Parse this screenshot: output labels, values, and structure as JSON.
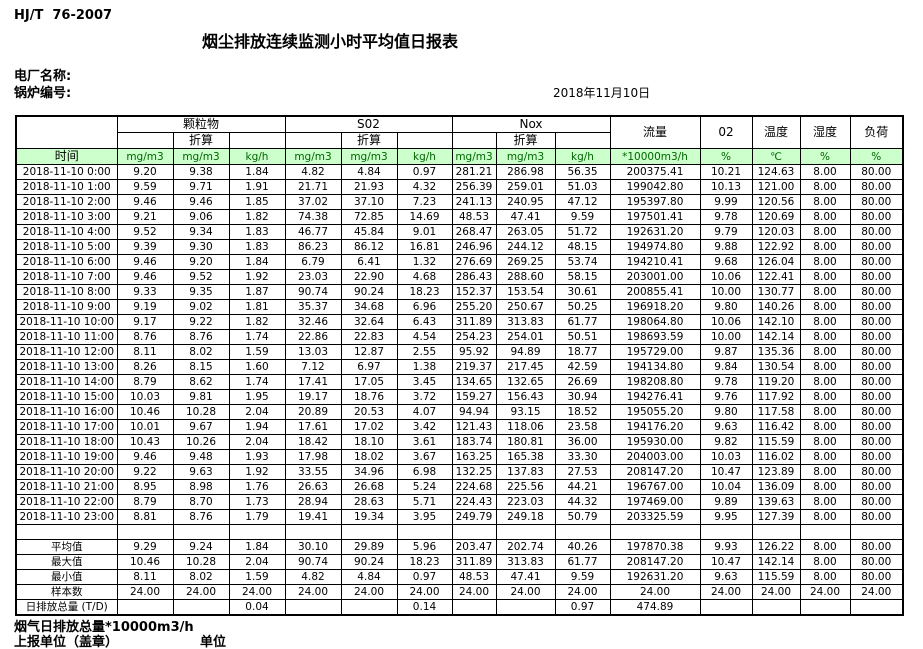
{
  "header": {
    "standard": "HJ/T  76-2007",
    "title": "烟尘排放连续监测小时平均值日报表",
    "plant_label": "电厂名称:",
    "boiler_label": "锅炉编号:",
    "date": "2018年11月10日"
  },
  "table": {
    "columns": {
      "time": "时间",
      "groups": [
        "颗粒物",
        "S02",
        "Nox"
      ],
      "subheader": "折算",
      "flow": "流量",
      "o2": "02",
      "temp": "温度",
      "humidity": "湿度",
      "load": "负荷",
      "units": [
        "mg/m3",
        "mg/m3",
        "kg/h",
        "mg/m3",
        "mg/m3",
        "kg/h",
        "mg/m3",
        "mg/m3",
        "kg/h",
        "*10000m3/h",
        "%",
        "℃",
        "%",
        "%"
      ]
    },
    "rows": [
      {
        "time": "2018-11-10 0:00",
        "values": [
          "9.20",
          "9.38",
          "1.84",
          "4.82",
          "4.84",
          "0.97",
          "281.21",
          "286.98",
          "56.35",
          "200375.41",
          "10.21",
          "124.63",
          "8.00",
          "80.00"
        ]
      },
      {
        "time": "2018-11-10 1:00",
        "values": [
          "9.59",
          "9.71",
          "1.91",
          "21.71",
          "21.93",
          "4.32",
          "256.39",
          "259.01",
          "51.03",
          "199042.80",
          "10.13",
          "121.00",
          "8.00",
          "80.00"
        ]
      },
      {
        "time": "2018-11-10 2:00",
        "values": [
          "9.46",
          "9.46",
          "1.85",
          "37.02",
          "37.10",
          "7.23",
          "241.13",
          "240.95",
          "47.12",
          "195397.80",
          "9.99",
          "120.56",
          "8.00",
          "80.00"
        ]
      },
      {
        "time": "2018-11-10 3:00",
        "values": [
          "9.21",
          "9.06",
          "1.82",
          "74.38",
          "72.85",
          "14.69",
          "48.53",
          "47.41",
          "9.59",
          "197501.41",
          "9.78",
          "120.69",
          "8.00",
          "80.00"
        ]
      },
      {
        "time": "2018-11-10 4:00",
        "values": [
          "9.52",
          "9.34",
          "1.83",
          "46.77",
          "45.84",
          "9.01",
          "268.47",
          "263.05",
          "51.72",
          "192631.20",
          "9.79",
          "120.03",
          "8.00",
          "80.00"
        ]
      },
      {
        "time": "2018-11-10 5:00",
        "values": [
          "9.39",
          "9.30",
          "1.83",
          "86.23",
          "86.12",
          "16.81",
          "246.96",
          "244.12",
          "48.15",
          "194974.80",
          "9.88",
          "122.92",
          "8.00",
          "80.00"
        ]
      },
      {
        "time": "2018-11-10 6:00",
        "values": [
          "9.46",
          "9.20",
          "1.84",
          "6.79",
          "6.41",
          "1.32",
          "276.69",
          "269.25",
          "53.74",
          "194210.41",
          "9.68",
          "126.04",
          "8.00",
          "80.00"
        ]
      },
      {
        "time": "2018-11-10 7:00",
        "values": [
          "9.46",
          "9.52",
          "1.92",
          "23.03",
          "22.90",
          "4.68",
          "286.43",
          "288.60",
          "58.15",
          "203001.00",
          "10.06",
          "122.41",
          "8.00",
          "80.00"
        ]
      },
      {
        "time": "2018-11-10 8:00",
        "values": [
          "9.33",
          "9.35",
          "1.87",
          "90.74",
          "90.24",
          "18.23",
          "152.37",
          "153.54",
          "30.61",
          "200855.41",
          "10.00",
          "130.77",
          "8.00",
          "80.00"
        ]
      },
      {
        "time": "2018-11-10 9:00",
        "values": [
          "9.19",
          "9.02",
          "1.81",
          "35.37",
          "34.68",
          "6.96",
          "255.20",
          "250.67",
          "50.25",
          "196918.20",
          "9.80",
          "140.26",
          "8.00",
          "80.00"
        ]
      },
      {
        "time": "2018-11-10 10:00",
        "values": [
          "9.17",
          "9.22",
          "1.82",
          "32.46",
          "32.64",
          "6.43",
          "311.89",
          "313.83",
          "61.77",
          "198064.80",
          "10.06",
          "142.10",
          "8.00",
          "80.00"
        ]
      },
      {
        "time": "2018-11-10 11:00",
        "values": [
          "8.76",
          "8.76",
          "1.74",
          "22.86",
          "22.83",
          "4.54",
          "254.23",
          "254.01",
          "50.51",
          "198693.59",
          "10.00",
          "142.14",
          "8.00",
          "80.00"
        ]
      },
      {
        "time": "2018-11-10 12:00",
        "values": [
          "8.11",
          "8.02",
          "1.59",
          "13.03",
          "12.87",
          "2.55",
          "95.92",
          "94.89",
          "18.77",
          "195729.00",
          "9.87",
          "135.36",
          "8.00",
          "80.00"
        ]
      },
      {
        "time": "2018-11-10 13:00",
        "values": [
          "8.26",
          "8.15",
          "1.60",
          "7.12",
          "6.97",
          "1.38",
          "219.37",
          "217.45",
          "42.59",
          "194134.80",
          "9.84",
          "130.54",
          "8.00",
          "80.00"
        ]
      },
      {
        "time": "2018-11-10 14:00",
        "values": [
          "8.79",
          "8.62",
          "1.74",
          "17.41",
          "17.05",
          "3.45",
          "134.65",
          "132.65",
          "26.69",
          "198208.80",
          "9.78",
          "119.20",
          "8.00",
          "80.00"
        ]
      },
      {
        "time": "2018-11-10 15:00",
        "values": [
          "10.03",
          "9.81",
          "1.95",
          "19.17",
          "18.76",
          "3.72",
          "159.27",
          "156.43",
          "30.94",
          "194276.41",
          "9.76",
          "117.92",
          "8.00",
          "80.00"
        ]
      },
      {
        "time": "2018-11-10 16:00",
        "values": [
          "10.46",
          "10.28",
          "2.04",
          "20.89",
          "20.53",
          "4.07",
          "94.94",
          "93.15",
          "18.52",
          "195055.20",
          "9.80",
          "117.58",
          "8.00",
          "80.00"
        ]
      },
      {
        "time": "2018-11-10 17:00",
        "values": [
          "10.01",
          "9.67",
          "1.94",
          "17.61",
          "17.02",
          "3.42",
          "121.43",
          "118.06",
          "23.58",
          "194176.20",
          "9.63",
          "116.42",
          "8.00",
          "80.00"
        ]
      },
      {
        "time": "2018-11-10 18:00",
        "values": [
          "10.43",
          "10.26",
          "2.04",
          "18.42",
          "18.10",
          "3.61",
          "183.74",
          "180.81",
          "36.00",
          "195930.00",
          "9.82",
          "115.59",
          "8.00",
          "80.00"
        ]
      },
      {
        "time": "2018-11-10 19:00",
        "values": [
          "9.46",
          "9.48",
          "1.93",
          "17.98",
          "18.02",
          "3.67",
          "163.25",
          "165.38",
          "33.30",
          "204003.00",
          "10.03",
          "116.02",
          "8.00",
          "80.00"
        ]
      },
      {
        "time": "2018-11-10 20:00",
        "values": [
          "9.22",
          "9.63",
          "1.92",
          "33.55",
          "34.96",
          "6.98",
          "132.25",
          "137.83",
          "27.53",
          "208147.20",
          "10.47",
          "123.89",
          "8.00",
          "80.00"
        ]
      },
      {
        "time": "2018-11-10 21:00",
        "values": [
          "8.95",
          "8.98",
          "1.76",
          "26.63",
          "26.68",
          "5.24",
          "224.68",
          "225.56",
          "44.21",
          "196767.00",
          "10.04",
          "136.09",
          "8.00",
          "80.00"
        ]
      },
      {
        "time": "2018-11-10 22:00",
        "values": [
          "8.79",
          "8.70",
          "1.73",
          "28.94",
          "28.63",
          "5.71",
          "224.43",
          "223.03",
          "44.32",
          "197469.00",
          "9.89",
          "139.63",
          "8.00",
          "80.00"
        ]
      },
      {
        "time": "2018-11-10 23:00",
        "values": [
          "8.81",
          "8.76",
          "1.79",
          "19.41",
          "19.34",
          "3.95",
          "249.79",
          "249.18",
          "50.79",
          "203325.59",
          "9.95",
          "127.39",
          "8.00",
          "80.00"
        ]
      }
    ],
    "summary": [
      {
        "label": "平均值",
        "values": [
          "9.29",
          "9.24",
          "1.84",
          "30.10",
          "29.89",
          "5.96",
          "203.47",
          "202.74",
          "40.26",
          "197870.38",
          "9.93",
          "126.22",
          "8.00",
          "80.00"
        ]
      },
      {
        "label": "最大值",
        "values": [
          "10.46",
          "10.28",
          "2.04",
          "90.74",
          "90.24",
          "18.23",
          "311.89",
          "313.83",
          "61.77",
          "208147.20",
          "10.47",
          "142.14",
          "8.00",
          "80.00"
        ]
      },
      {
        "label": "最小值",
        "values": [
          "8.11",
          "8.02",
          "1.59",
          "4.82",
          "4.84",
          "0.97",
          "48.53",
          "47.41",
          "9.59",
          "192631.20",
          "9.63",
          "115.59",
          "8.00",
          "80.00"
        ]
      },
      {
        "label": "样本数",
        "values": [
          "24.00",
          "24.00",
          "24.00",
          "24.00",
          "24.00",
          "24.00",
          "24.00",
          "24.00",
          "24.00",
          "24.00",
          "24.00",
          "24.00",
          "24.00",
          "24.00"
        ]
      },
      {
        "label": "日排放总量 (T/D)",
        "values": [
          "",
          "",
          "0.04",
          "",
          "",
          "0.14",
          "",
          "",
          "0.97",
          "474.89",
          "",
          "",
          "",
          ""
        ]
      }
    ]
  },
  "footer": {
    "flue_total": "烟气日排放总量*10000m3/h",
    "report_unit_label": "上报单位（盖章）",
    "unit_label": "单位"
  }
}
